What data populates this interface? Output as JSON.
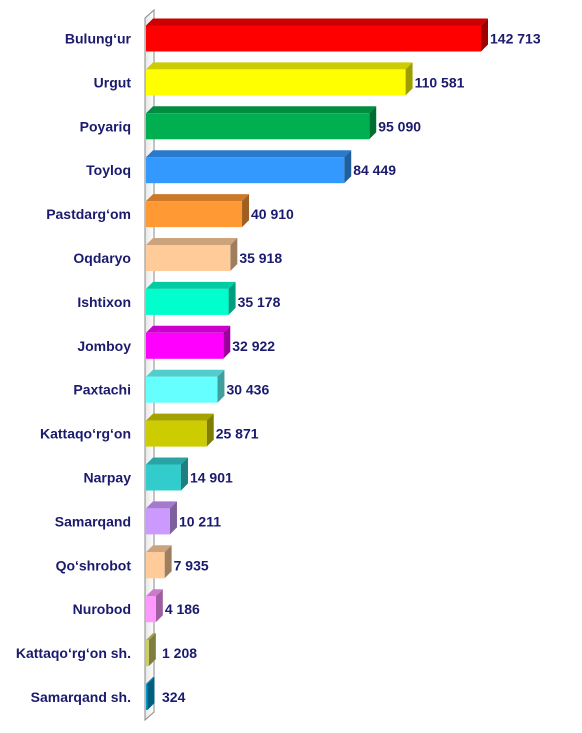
{
  "chart_data": {
    "type": "bar",
    "orientation": "horizontal",
    "title": "",
    "xlabel": "",
    "ylabel": "",
    "categories": [
      "Bulung‘ur",
      "Urgut",
      "Poyariq",
      "Toyloq",
      "Pastdarg‘om",
      "Oqdaryo",
      "Ishtixon",
      "Jomboy",
      "Paxtachi",
      "Kattaqo‘rg‘on",
      "Narpay",
      "Samarqand",
      "Qo‘shrobot",
      "Nurobod",
      "Kattaqo‘rg‘on sh.",
      "Samarqand sh."
    ],
    "values": [
      142713,
      110581,
      95090,
      84449,
      40910,
      35918,
      35178,
      32922,
      30436,
      25871,
      14901,
      10211,
      7935,
      4186,
      1208,
      324
    ],
    "value_labels": [
      "142 713",
      "110 581",
      "95 090",
      "84 449",
      "40 910",
      "35 918",
      "35 178",
      "32 922",
      "30 436",
      "25 871",
      "14 901",
      "10 211",
      "7 935",
      "4 186",
      "1 208",
      "324"
    ],
    "colors": [
      "#ff0000",
      "#ffff00",
      "#00b050",
      "#3399ff",
      "#ff9933",
      "#ffcc99",
      "#00ffcc",
      "#ff00ff",
      "#66ffff",
      "#cccc00",
      "#33cccc",
      "#cc99ff",
      "#ffcc99",
      "#ff99ff",
      "#cccc66",
      "#0099cc"
    ],
    "xlim": [
      0,
      142713
    ],
    "grid": false,
    "legend": "none"
  }
}
